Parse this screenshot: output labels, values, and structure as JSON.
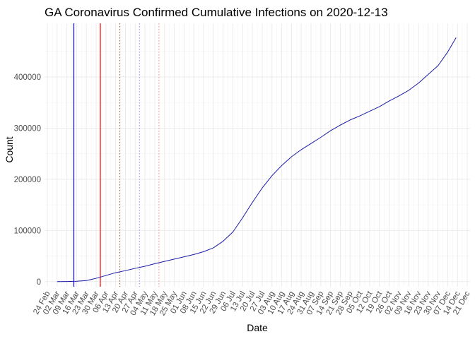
{
  "chart_data": {
    "type": "line",
    "title": "GA Coronavirus Confirmed Cumulative Infections on 2020-12-13",
    "xlabel": "Date",
    "ylabel": "Count",
    "x_type": "date",
    "xlim": [
      "2020-02-22",
      "2020-12-23"
    ],
    "ylim": [
      -10000,
      505000
    ],
    "x_ticks": [
      "2020-02-24",
      "2020-03-02",
      "2020-03-09",
      "2020-03-16",
      "2020-03-23",
      "2020-03-30",
      "2020-04-06",
      "2020-04-13",
      "2020-04-20",
      "2020-04-27",
      "2020-05-04",
      "2020-05-11",
      "2020-05-18",
      "2020-05-25",
      "2020-06-01",
      "2020-06-08",
      "2020-06-15",
      "2020-06-22",
      "2020-06-29",
      "2020-07-06",
      "2020-07-13",
      "2020-07-20",
      "2020-07-27",
      "2020-08-03",
      "2020-08-10",
      "2020-08-17",
      "2020-08-24",
      "2020-08-31",
      "2020-09-07",
      "2020-09-14",
      "2020-09-21",
      "2020-09-28",
      "2020-10-05",
      "2020-10-12",
      "2020-10-19",
      "2020-10-26",
      "2020-11-02",
      "2020-11-09",
      "2020-11-16",
      "2020-11-23",
      "2020-11-30",
      "2020-12-07",
      "2020-12-14",
      "2020-12-21"
    ],
    "x_tick_labels": [
      "24 Feb",
      "02 Mar",
      "09 Mar",
      "16 Mar",
      "23 Mar",
      "30 Mar",
      "06 Apr",
      "13 Apr",
      "20 Apr",
      "27 Apr",
      "04 May",
      "11 May",
      "18 May",
      "25 May",
      "01 Jun",
      "08 Jun",
      "15 Jun",
      "22 Jun",
      "29 Jun",
      "06 Jul",
      "13 Jul",
      "20 Jul",
      "27 Jul",
      "03 Aug",
      "10 Aug",
      "17 Aug",
      "24 Aug",
      "31 Aug",
      "07 Sep",
      "14 Sep",
      "21 Sep",
      "28 Sep",
      "05 Oct",
      "12 Oct",
      "19 Oct",
      "26 Oct",
      "02 Nov",
      "09 Nov",
      "16 Nov",
      "23 Nov",
      "30 Nov",
      "07 Dec",
      "14 Dec",
      "21 Dec"
    ],
    "y_ticks": [
      0,
      100000,
      200000,
      300000,
      400000
    ],
    "y_tick_labels": [
      "0",
      "100000",
      "200000",
      "300000",
      "400000"
    ],
    "grid": true,
    "legend": "none",
    "series": [
      {
        "color": "#1a1aa6",
        "x": [
          "2020-03-02",
          "2020-03-09",
          "2020-03-16",
          "2020-03-23",
          "2020-03-30",
          "2020-04-06",
          "2020-04-13",
          "2020-04-20",
          "2020-04-27",
          "2020-05-04",
          "2020-05-11",
          "2020-05-18",
          "2020-05-25",
          "2020-06-01",
          "2020-06-08",
          "2020-06-15",
          "2020-06-22",
          "2020-06-29",
          "2020-07-06",
          "2020-07-13",
          "2020-07-20",
          "2020-07-27",
          "2020-08-03",
          "2020-08-10",
          "2020-08-17",
          "2020-08-24",
          "2020-08-31",
          "2020-09-07",
          "2020-09-14",
          "2020-09-21",
          "2020-09-28",
          "2020-10-05",
          "2020-10-12",
          "2020-10-19",
          "2020-10-26",
          "2020-11-02",
          "2020-11-09",
          "2020-11-16",
          "2020-11-23",
          "2020-11-30",
          "2020-12-07",
          "2020-12-13"
        ],
        "y": [
          2,
          150,
          700,
          2000,
          6500,
          12000,
          17500,
          21500,
          26000,
          30000,
          35000,
          39500,
          44000,
          48500,
          53000,
          58500,
          66000,
          79000,
          97000,
          125000,
          155000,
          183000,
          207000,
          227000,
          244000,
          258000,
          270000,
          282000,
          295000,
          306000,
          316000,
          324000,
          333000,
          342000,
          353000,
          363000,
          374000,
          388000,
          405000,
          422000,
          449000,
          477000
        ]
      }
    ],
    "vlines": [
      {
        "x": "2020-03-14",
        "color": "#0000ff",
        "style": "solid"
      },
      {
        "x": "2020-04-02",
        "color": "#ff0000",
        "style": "solid"
      },
      {
        "x": "2020-04-16",
        "color": "#8b4513",
        "style": "dotted"
      },
      {
        "x": "2020-04-30",
        "color": "#8080ff",
        "style": "dotted"
      },
      {
        "x": "2020-05-14",
        "color": "#ff8080",
        "style": "dotted"
      }
    ]
  }
}
